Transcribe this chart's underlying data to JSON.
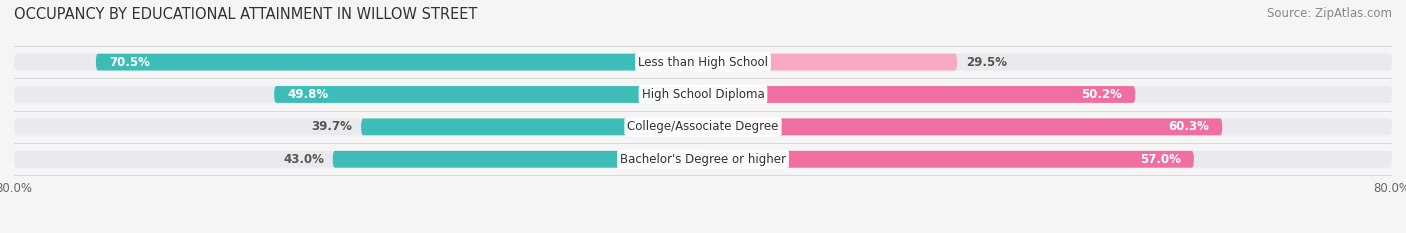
{
  "title": "OCCUPANCY BY EDUCATIONAL ATTAINMENT IN WILLOW STREET",
  "source": "Source: ZipAtlas.com",
  "categories": [
    "Less than High School",
    "High School Diploma",
    "College/Associate Degree",
    "Bachelor's Degree or higher"
  ],
  "owner_values": [
    70.5,
    49.8,
    39.7,
    43.0
  ],
  "renter_values": [
    29.5,
    50.2,
    60.3,
    57.0
  ],
  "owner_color": "#3DBCB8",
  "renter_color": "#F06FA0",
  "renter_color_light": "#F7A8C4",
  "bar_bg_color": "#e8eaed",
  "background_color": "#f5f5f5",
  "xlim": 80.0,
  "bar_height": 0.52,
  "title_fontsize": 10.5,
  "source_fontsize": 8.5,
  "legend_fontsize": 9,
  "label_fontsize": 8.5,
  "category_fontsize": 8.5,
  "tick_fontsize": 8.5
}
